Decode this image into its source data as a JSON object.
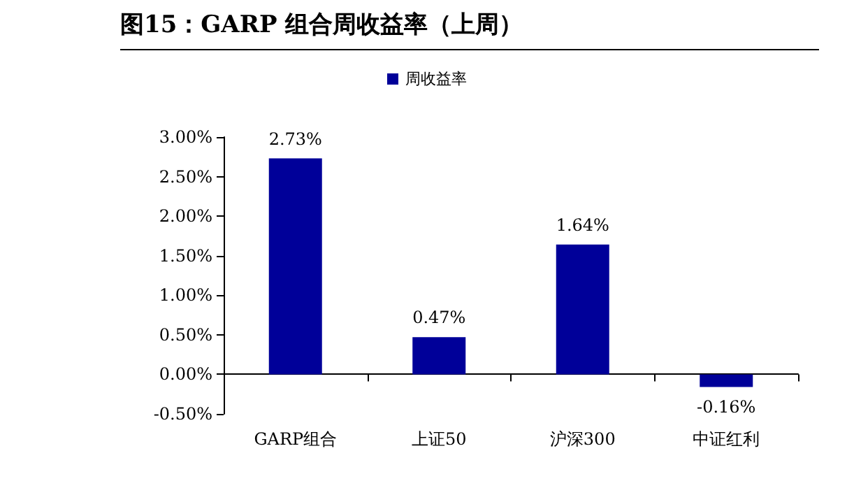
{
  "chart_data": {
    "type": "bar",
    "title": "图15：GARP 组合周收益率（上周）",
    "categories": [
      "GARP组合",
      "上证50",
      "沪深300",
      "中证红利"
    ],
    "series": [
      {
        "name": "周收益率",
        "color": "#000099",
        "values": [
          2.73,
          0.47,
          1.64,
          -0.16
        ],
        "value_labels": [
          "2.73%",
          "0.47%",
          "1.64%",
          "-0.16%"
        ]
      }
    ],
    "ylim": [
      -0.5,
      3.0
    ],
    "yticks": [
      {
        "value": -0.5,
        "label": "-0.50%"
      },
      {
        "value": 0,
        "label": "0.00%"
      },
      {
        "value": 0.5,
        "label": "0.50%"
      },
      {
        "value": 1.0,
        "label": "1.00%"
      },
      {
        "value": 1.5,
        "label": "1.50%"
      },
      {
        "value": 2.0,
        "label": "2.00%"
      },
      {
        "value": 2.5,
        "label": "2.50%"
      },
      {
        "value": 3.0,
        "label": "3.00%"
      }
    ],
    "legend": "top"
  }
}
